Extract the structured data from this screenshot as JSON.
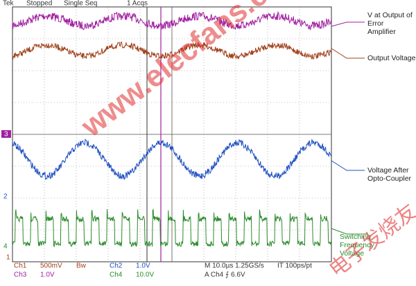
{
  "header": {
    "brand": "Tek",
    "status": "Stopped",
    "mode": "Single Seq",
    "acquisitions": "1 Acqs"
  },
  "annotations": [
    "V at Output of Error Amplifier",
    "Output Voltage",
    "Voltage After Opto-Coupler",
    "Switching Frequency Voltage"
  ],
  "channel_markers": [
    "3",
    "2",
    "4",
    "1"
  ],
  "settings": {
    "ch1": "Ch1",
    "ch1_scale": "500mV",
    "ch1_bw": "Bw",
    "ch2": "Ch2",
    "ch2_scale": "1.0V",
    "ch3": "Ch3",
    "ch3_scale": "1.0V",
    "ch4": "Ch4",
    "ch4_scale": "10.0V",
    "timebase": "M 10.0µs 1.25GS/s",
    "interval": "IT 100ps/pt",
    "trigger": "A Ch4 ⨍ 6.6V"
  },
  "watermark": {
    "site": "www.elecfans.com",
    "brand": "电子发烧友"
  }
}
